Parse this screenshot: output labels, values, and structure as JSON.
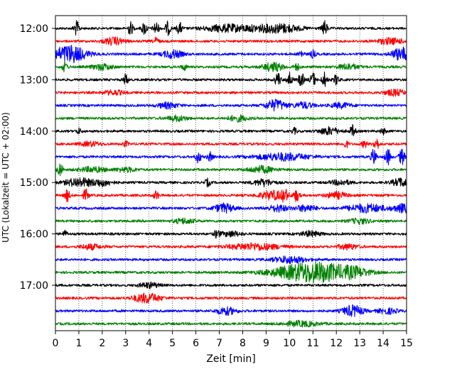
{
  "chart_data": {
    "type": "line",
    "subtype": "helicorder-seismogram",
    "xlabel": "Zeit  [min]",
    "ylabel": "UTC (Lokalzeit = UTC + 02:00)",
    "xlim": [
      0,
      15
    ],
    "x_ticks": [
      "0",
      "1",
      "2",
      "3",
      "4",
      "5",
      "6",
      "7",
      "8",
      "9",
      "10",
      "11",
      "12",
      "13",
      "14",
      "15"
    ],
    "y_tick_labels": [
      "12:00",
      "13:00",
      "14:00",
      "15:00",
      "16:00",
      "17:00"
    ],
    "grid": "vertical dotted lines at each minute",
    "trace_colors": [
      "#000000",
      "#ff0000",
      "#0000ff",
      "#008000"
    ],
    "traces": [
      {
        "start": "12:00",
        "color": "#000000",
        "events": [
          [
            0.9,
            0.08,
            1
          ],
          [
            3.2,
            0.08,
            0.9
          ],
          [
            3.8,
            0.08,
            0.9
          ],
          [
            4.3,
            0.08,
            0.9
          ],
          [
            4.8,
            0.08,
            0.9
          ],
          [
            5.3,
            0.08,
            0.8
          ],
          [
            7.2,
            0.6,
            0.45
          ],
          [
            8.9,
            0.8,
            0.4
          ],
          [
            9.8,
            0.5,
            0.35
          ],
          [
            11.5,
            0.08,
            1
          ]
        ]
      },
      {
        "start": "12:15",
        "color": "#ff0000",
        "events": [
          [
            2.5,
            0.3,
            0.5
          ],
          [
            4.3,
            0.08,
            0.5
          ],
          [
            14.3,
            0.4,
            0.4
          ]
        ]
      },
      {
        "start": "12:30",
        "color": "#0000ff",
        "events": [
          [
            0.6,
            0.5,
            1.2
          ],
          [
            5.0,
            0.3,
            0.55
          ],
          [
            10.5,
            0.08,
            0.5
          ],
          [
            11.0,
            0.08,
            0.5
          ],
          [
            14.8,
            0.3,
            0.9
          ]
        ]
      },
      {
        "start": "12:45",
        "color": "#008000",
        "events": [
          [
            0.4,
            0.08,
            0.7
          ],
          [
            2.0,
            0.3,
            0.4
          ],
          [
            5.5,
            0.08,
            0.4
          ],
          [
            9.3,
            0.3,
            0.6
          ],
          [
            10.3,
            0.08,
            0.5
          ],
          [
            12.5,
            0.3,
            0.4
          ]
        ]
      },
      {
        "start": "13:00",
        "color": "#000000",
        "events": [
          [
            3.0,
            0.08,
            0.7
          ],
          [
            9.5,
            0.08,
            1
          ],
          [
            10.0,
            0.08,
            1
          ],
          [
            10.5,
            0.08,
            1
          ],
          [
            11.0,
            0.08,
            1
          ],
          [
            11.5,
            0.08,
            1
          ],
          [
            12.0,
            0.08,
            0.7
          ]
        ]
      },
      {
        "start": "13:15",
        "color": "#ff0000",
        "events": [
          [
            2.5,
            0.3,
            0.3
          ],
          [
            14.5,
            0.3,
            0.4
          ]
        ]
      },
      {
        "start": "13:30",
        "color": "#0000ff",
        "events": [
          [
            4.8,
            0.3,
            0.4
          ],
          [
            9.4,
            0.3,
            0.75
          ],
          [
            10.6,
            0.3,
            0.4
          ],
          [
            12.2,
            0.3,
            0.35
          ]
        ]
      },
      {
        "start": "13:45",
        "color": "#008000",
        "events": [
          [
            5.2,
            0.3,
            0.35
          ],
          [
            7.8,
            0.3,
            0.4
          ]
        ]
      },
      {
        "start": "14:00",
        "color": "#000000",
        "events": [
          [
            1.0,
            0.08,
            0.35
          ],
          [
            10.2,
            0.08,
            0.4
          ],
          [
            11.7,
            0.3,
            0.5
          ],
          [
            12.7,
            0.08,
            0.8
          ],
          [
            14.0,
            0.08,
            0.4
          ]
        ]
      },
      {
        "start": "14:15",
        "color": "#ff0000",
        "events": [
          [
            1.5,
            0.3,
            0.3
          ],
          [
            3.0,
            0.08,
            0.35
          ],
          [
            12.4,
            0.08,
            0.5
          ],
          [
            13.2,
            0.08,
            0.5
          ],
          [
            13.7,
            0.08,
            0.9
          ]
        ]
      },
      {
        "start": "14:30",
        "color": "#0000ff",
        "events": [
          [
            6.1,
            0.08,
            0.8
          ],
          [
            6.6,
            0.08,
            0.6
          ],
          [
            9.7,
            0.8,
            0.5
          ],
          [
            13.6,
            0.08,
            1.1
          ],
          [
            14.2,
            0.08,
            1.1
          ],
          [
            14.8,
            0.08,
            1.1
          ]
        ]
      },
      {
        "start": "14:45",
        "color": "#008000",
        "events": [
          [
            0.2,
            0.08,
            1
          ],
          [
            1.6,
            0.4,
            0.35
          ],
          [
            3.0,
            0.3,
            0.3
          ],
          [
            8.8,
            0.4,
            0.45
          ]
        ]
      },
      {
        "start": "15:00",
        "color": "#000000",
        "events": [
          [
            1.0,
            0.4,
            0.6
          ],
          [
            2.0,
            0.3,
            0.45
          ],
          [
            6.5,
            0.08,
            0.5
          ],
          [
            8.9,
            0.3,
            0.45
          ],
          [
            12.2,
            0.3,
            0.35
          ],
          [
            14.8,
            0.3,
            0.55
          ]
        ]
      },
      {
        "start": "15:15",
        "color": "#ff0000",
        "events": [
          [
            0.5,
            0.08,
            0.8
          ],
          [
            1.3,
            0.08,
            0.8
          ],
          [
            4.3,
            0.08,
            0.6
          ],
          [
            9.3,
            0.4,
            0.6
          ],
          [
            9.8,
            0.08,
            0.8
          ],
          [
            10.3,
            0.08,
            0.8
          ],
          [
            12.0,
            0.3,
            0.45
          ]
        ]
      },
      {
        "start": "15:30",
        "color": "#0000ff",
        "events": [
          [
            7.2,
            0.3,
            0.6
          ],
          [
            9.5,
            0.3,
            0.45
          ],
          [
            10.7,
            0.3,
            0.45
          ],
          [
            13.3,
            0.6,
            0.55
          ],
          [
            14.9,
            0.3,
            0.55
          ]
        ]
      },
      {
        "start": "15:45",
        "color": "#008000",
        "events": [
          [
            5.5,
            0.3,
            0.35
          ],
          [
            13.0,
            0.3,
            0.35
          ]
        ]
      },
      {
        "start": "16:00",
        "color": "#000000",
        "events": [
          [
            0.4,
            0.08,
            0.4
          ],
          [
            6.9,
            0.08,
            0.55
          ],
          [
            7.5,
            0.3,
            0.35
          ],
          [
            10.9,
            0.3,
            0.35
          ]
        ]
      },
      {
        "start": "16:15",
        "color": "#ff0000",
        "events": [
          [
            1.5,
            0.3,
            0.35
          ],
          [
            8.5,
            0.8,
            0.45
          ],
          [
            12.5,
            0.3,
            0.35
          ]
        ]
      },
      {
        "start": "16:30",
        "color": "#0000ff",
        "events": [
          [
            10.0,
            0.5,
            0.45
          ]
        ]
      },
      {
        "start": "16:45",
        "color": "#008000",
        "events": [
          [
            10.5,
            1.0,
            0.75
          ],
          [
            11.5,
            1.0,
            0.85
          ],
          [
            12.8,
            0.4,
            0.4
          ]
        ]
      },
      {
        "start": "17:00",
        "color": "#000000",
        "events": [
          [
            4.0,
            0.3,
            0.35
          ]
        ]
      },
      {
        "start": "17:15",
        "color": "#ff0000",
        "events": [
          [
            3.9,
            0.4,
            0.65
          ]
        ]
      },
      {
        "start": "17:30",
        "color": "#0000ff",
        "events": [
          [
            7.3,
            0.3,
            0.5
          ],
          [
            12.7,
            0.3,
            0.75
          ],
          [
            14.2,
            0.3,
            0.35
          ]
        ]
      },
      {
        "start": "17:45",
        "color": "#008000",
        "events": [
          [
            10.5,
            0.5,
            0.35
          ]
        ]
      }
    ]
  }
}
